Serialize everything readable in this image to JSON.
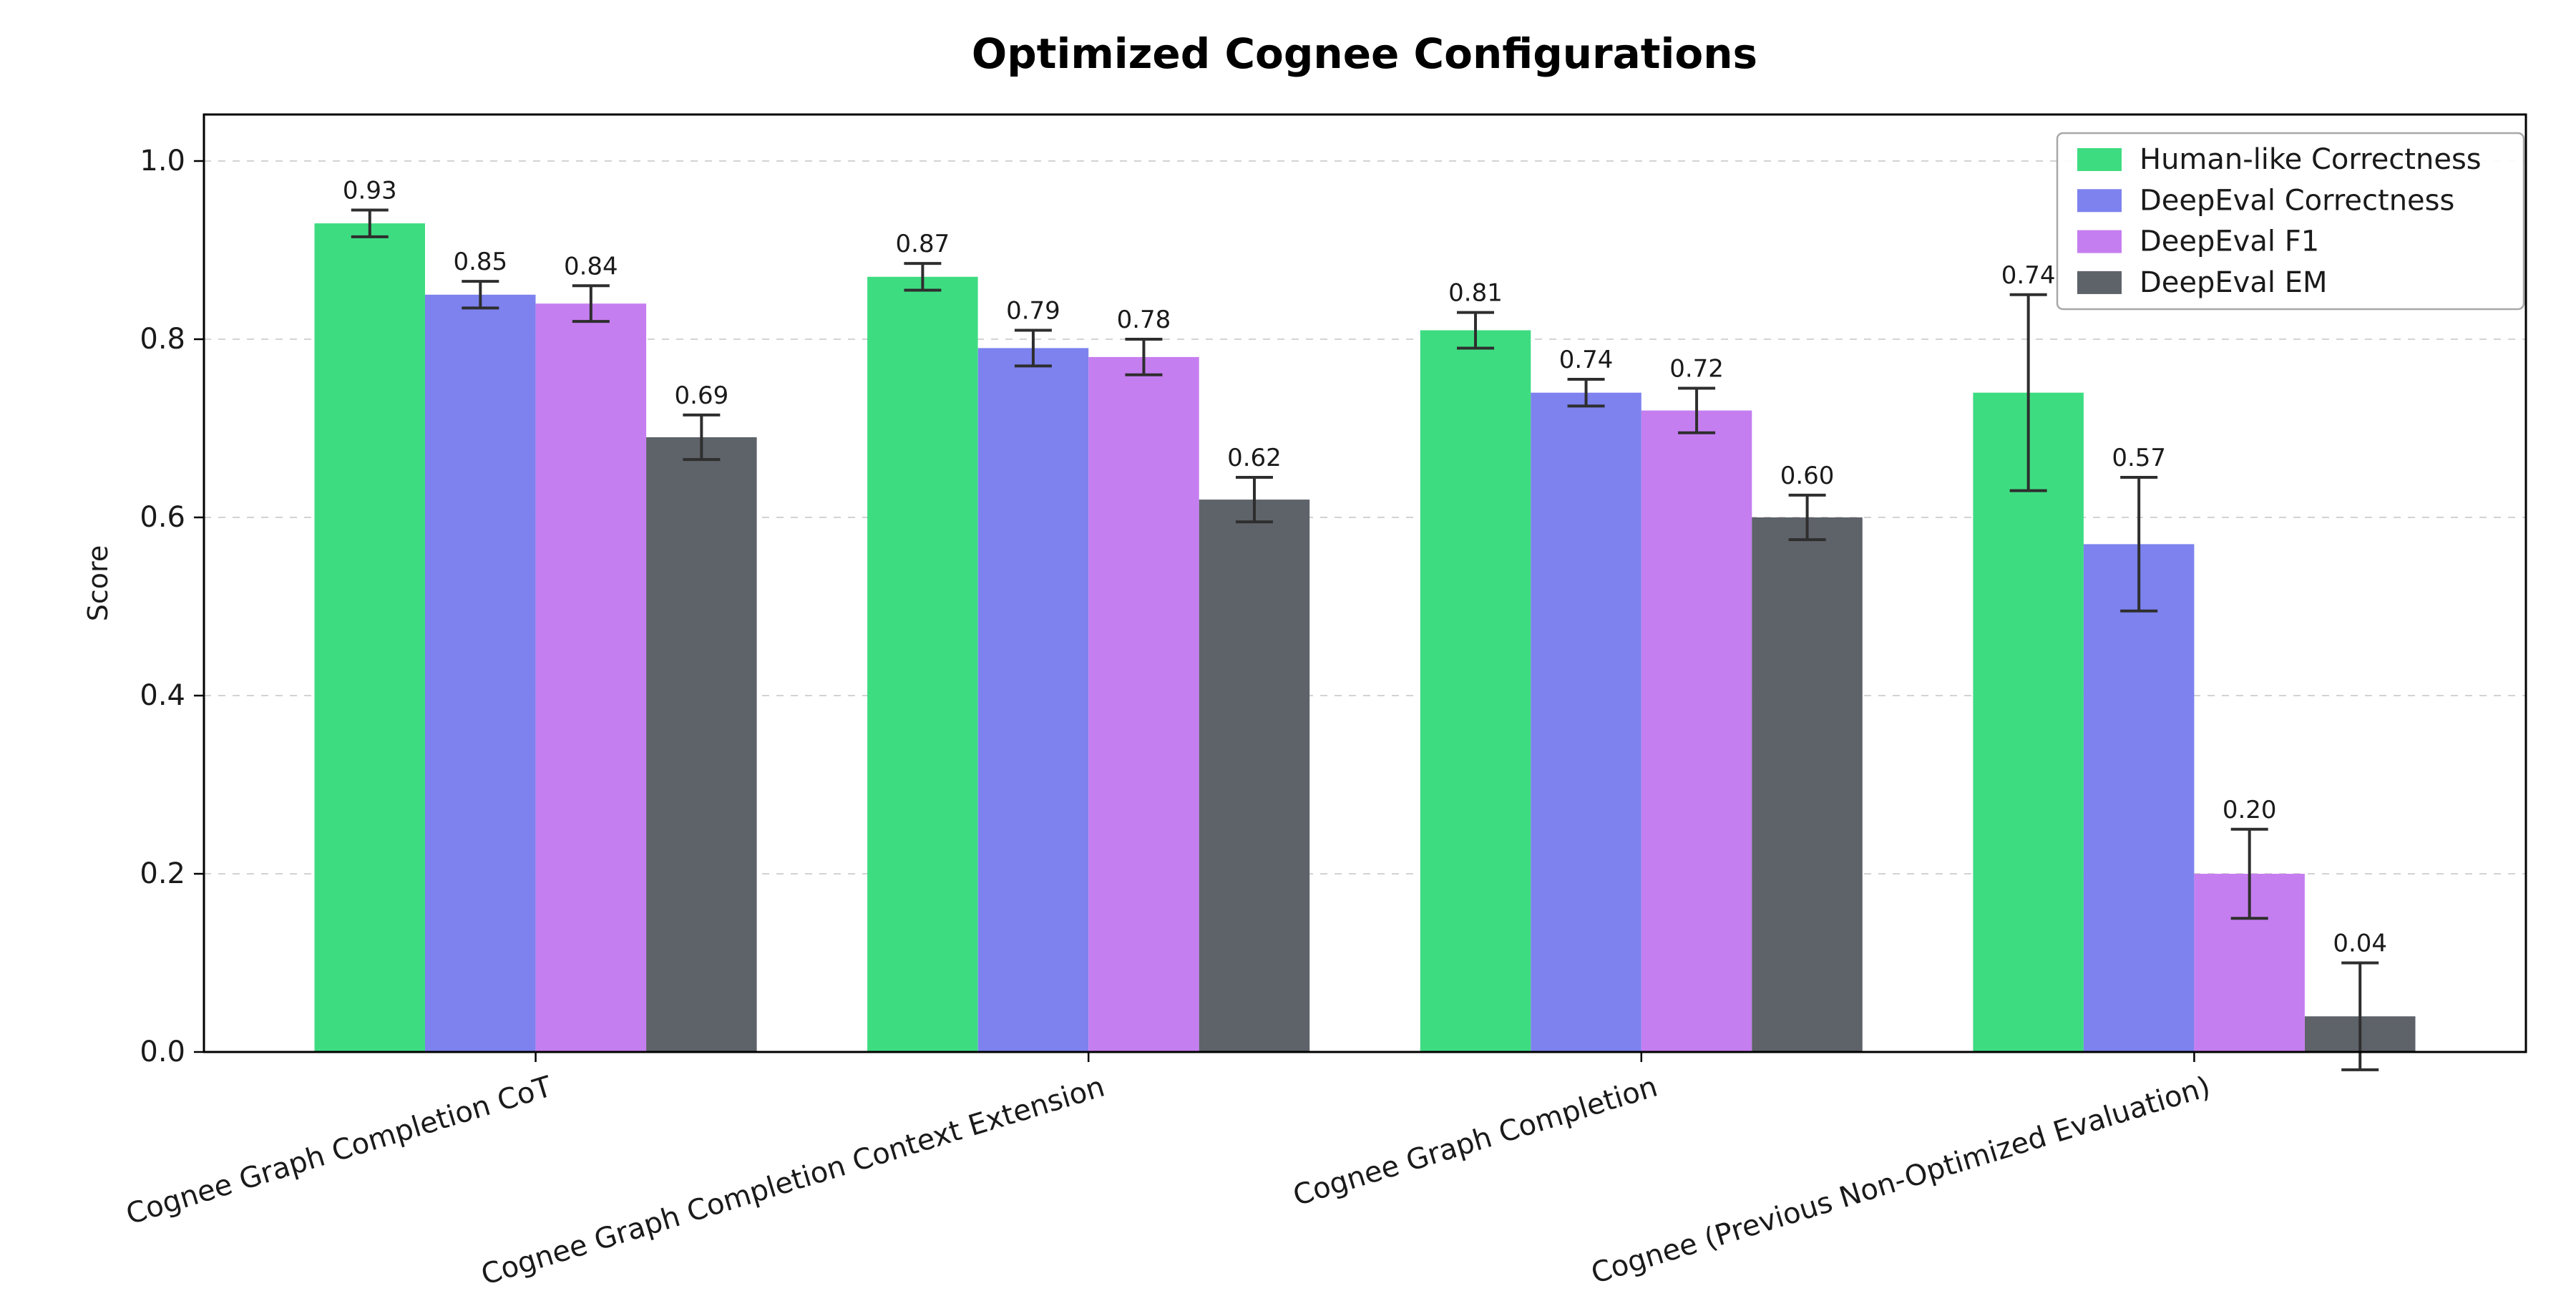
{
  "chart_data": {
    "type": "bar",
    "title": "Optimized Cognee Configurations",
    "xlabel": "",
    "ylabel": "Score",
    "ylim": [
      0,
      1.05
    ],
    "ytick_labels": [
      "0.0",
      "0.2",
      "0.4",
      "0.6",
      "0.8",
      "1.0"
    ],
    "ytick_values": [
      0.0,
      0.2,
      0.4,
      0.6,
      0.8,
      1.0
    ],
    "grid": "horizontal-dashed",
    "legend_position": "upper-right",
    "categories": [
      "Cognee Graph Completion CoT",
      "Cognee Graph Completion Context Extension",
      "Cognee Graph Completion",
      "Cognee (Previous Non-Optimized Evaluation)"
    ],
    "series": [
      {
        "name": "Human-like Correctness",
        "color": "#3edc81",
        "values": [
          0.93,
          0.87,
          0.81,
          0.74
        ],
        "errors": [
          0.015,
          0.015,
          0.02,
          0.11
        ],
        "value_labels": [
          "0.93",
          "0.87",
          "0.81",
          "0.74"
        ]
      },
      {
        "name": "DeepEval Correctness",
        "color": "#7d82ee",
        "values": [
          0.85,
          0.79,
          0.74,
          0.57
        ],
        "errors": [
          0.015,
          0.02,
          0.015,
          0.075
        ],
        "value_labels": [
          "0.85",
          "0.79",
          "0.74",
          "0.57"
        ]
      },
      {
        "name": "DeepEval F1",
        "color": "#c57ef0",
        "values": [
          0.84,
          0.78,
          0.72,
          0.2
        ],
        "errors": [
          0.02,
          0.02,
          0.025,
          0.05
        ],
        "value_labels": [
          "0.84",
          "0.78",
          "0.72",
          "0.20"
        ]
      },
      {
        "name": "DeepEval EM",
        "color": "#5e6269",
        "values": [
          0.69,
          0.62,
          0.6,
          0.04
        ],
        "errors": [
          0.025,
          0.025,
          0.025,
          0.06
        ],
        "value_labels": [
          "0.69",
          "0.62",
          "0.60",
          "0.04"
        ]
      }
    ],
    "colors": {
      "error_bar": "#2e2e2e",
      "axis": "#000000",
      "gridline": "#d3d3d3",
      "legend_border": "#a8a8a8",
      "background": "#ffffff",
      "label_text": "#1a1a1a"
    }
  }
}
